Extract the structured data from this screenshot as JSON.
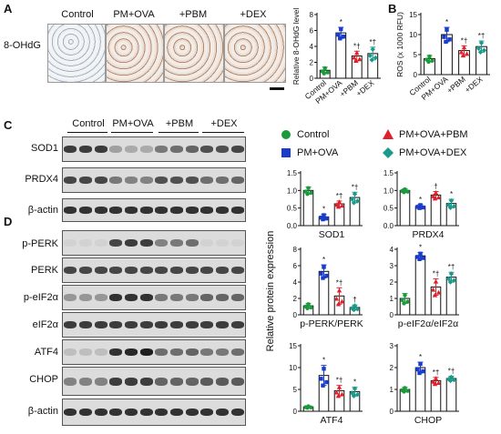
{
  "panel_labels": {
    "a": "A",
    "b": "B",
    "c": "C",
    "d": "D"
  },
  "stain_label": "8-OHdG",
  "histology_labels": [
    "Control",
    "PM+OVA",
    "+PBM",
    "+DEX"
  ],
  "blot_groups": [
    "Control",
    "PM+OVA",
    "+PBM",
    "+DEX"
  ],
  "blot_rows_c": [
    "SOD1",
    "PRDX4",
    "β-actin"
  ],
  "blot_rows_d": [
    "p-PERK",
    "PERK",
    "p-eIF2α",
    "eIF2α",
    "ATF4",
    "CHOP",
    "β-actin"
  ],
  "legend": [
    {
      "label": "Control",
      "color": "#1a9a3a",
      "shape": "circle"
    },
    {
      "label": "PM+OVA+PBM",
      "color": "#e0202a",
      "shape": "triangle"
    },
    {
      "label": "PM+OVA",
      "color": "#1a3ccc",
      "shape": "square"
    },
    {
      "label": "PM+OVA+DEX",
      "color": "#1a9a8a",
      "shape": "diamond"
    }
  ],
  "shared_ylabel": "Relative protein expression",
  "chart_data": [
    {
      "id": "ohdg",
      "type": "bar",
      "categories": [
        "Control",
        "PM+OVA",
        "+PBM",
        "+DEX"
      ],
      "values": [
        1,
        5.7,
        2.8,
        3.1
      ],
      "errors": [
        0.4,
        0.7,
        0.6,
        0.8
      ],
      "annotations": [
        "",
        "*",
        "*†",
        "*†"
      ],
      "ylabel": "Relative 8-OHdG level",
      "xlabel": "",
      "ylim": [
        0,
        8
      ],
      "yticks": [
        0,
        2,
        4,
        6,
        8
      ]
    },
    {
      "id": "ros",
      "type": "bar",
      "categories": [
        "Control",
        "PM+OVA",
        "+PBM",
        "+DEX"
      ],
      "values": [
        4,
        10,
        6,
        7
      ],
      "errors": [
        0.8,
        1.8,
        1.2,
        1.4
      ],
      "annotations": [
        "",
        "*",
        "*†",
        "*†"
      ],
      "ylabel": "ROS (x 1000 RFU)",
      "xlabel": "",
      "ylim": [
        0,
        15
      ],
      "yticks": [
        0,
        5,
        10,
        15
      ]
    },
    {
      "id": "sod1",
      "type": "bar",
      "categories": [
        "Control",
        "PM+OVA",
        "PM+OVA+PBM",
        "PM+OVA+DEX"
      ],
      "values": [
        1.0,
        0.25,
        0.62,
        0.8
      ],
      "errors": [
        0.1,
        0.07,
        0.08,
        0.15
      ],
      "annotations": [
        "",
        "*",
        "*†",
        "*†"
      ],
      "ylabel": "",
      "xlabel": "SOD1",
      "ylim": [
        0,
        1.5
      ],
      "yticks": [
        0.0,
        0.5,
        1.0,
        1.5
      ]
    },
    {
      "id": "prdx4",
      "type": "bar",
      "categories": [
        "Control",
        "PM+OVA",
        "PM+OVA+PBM",
        "PM+OVA+DEX"
      ],
      "values": [
        1.0,
        0.55,
        0.87,
        0.63
      ],
      "errors": [
        0.05,
        0.05,
        0.1,
        0.12
      ],
      "annotations": [
        "",
        "*",
        "†",
        "*"
      ],
      "ylabel": "",
      "xlabel": "PRDX4",
      "ylim": [
        0,
        1.5
      ],
      "yticks": [
        0.0,
        0.5,
        1.0,
        1.5
      ]
    },
    {
      "id": "pperk",
      "type": "bar",
      "categories": [
        "Control",
        "PM+OVA",
        "PM+OVA+PBM",
        "PM+OVA+DEX"
      ],
      "values": [
        1.1,
        5.3,
        2.3,
        0.9
      ],
      "errors": [
        0.3,
        0.8,
        1.0,
        0.3
      ],
      "annotations": [
        "",
        "*",
        "*†",
        "†"
      ],
      "ylabel": "",
      "xlabel": "p-PERK/PERK",
      "ylim": [
        0,
        8
      ],
      "yticks": [
        0,
        2,
        4,
        6,
        8
      ]
    },
    {
      "id": "peif2a",
      "type": "bar",
      "categories": [
        "Control",
        "PM+OVA",
        "PM+OVA+PBM",
        "PM+OVA+DEX"
      ],
      "values": [
        1.0,
        3.6,
        1.7,
        2.3
      ],
      "errors": [
        0.3,
        0.2,
        0.5,
        0.3
      ],
      "annotations": [
        "",
        "*",
        "*†",
        "*†"
      ],
      "ylabel": "",
      "xlabel": "p-eIF2α/eIF2α",
      "ylim": [
        0,
        4
      ],
      "yticks": [
        0,
        1,
        2,
        3,
        4
      ]
    },
    {
      "id": "atf4",
      "type": "bar",
      "categories": [
        "Control",
        "PM+OVA",
        "PM+OVA+PBM",
        "PM+OVA+DEX"
      ],
      "values": [
        1.0,
        8.2,
        4.7,
        4.5
      ],
      "errors": [
        0.2,
        2.3,
        1.2,
        1.0
      ],
      "annotations": [
        "",
        "*",
        "*†",
        "*"
      ],
      "ylabel": "",
      "xlabel": "ATF4",
      "ylim": [
        0,
        15
      ],
      "yticks": [
        0,
        5,
        10,
        15
      ]
    },
    {
      "id": "chop",
      "type": "bar",
      "categories": [
        "Control",
        "PM+OVA",
        "PM+OVA+PBM",
        "PM+OVA+DEX"
      ],
      "values": [
        1.0,
        2.0,
        1.4,
        1.5
      ],
      "errors": [
        0.1,
        0.25,
        0.15,
        0.1
      ],
      "annotations": [
        "",
        "*",
        "*†",
        "*†"
      ],
      "ylabel": "",
      "xlabel": "CHOP",
      "ylim": [
        0,
        3
      ],
      "yticks": [
        0,
        1,
        2,
        3
      ]
    }
  ]
}
